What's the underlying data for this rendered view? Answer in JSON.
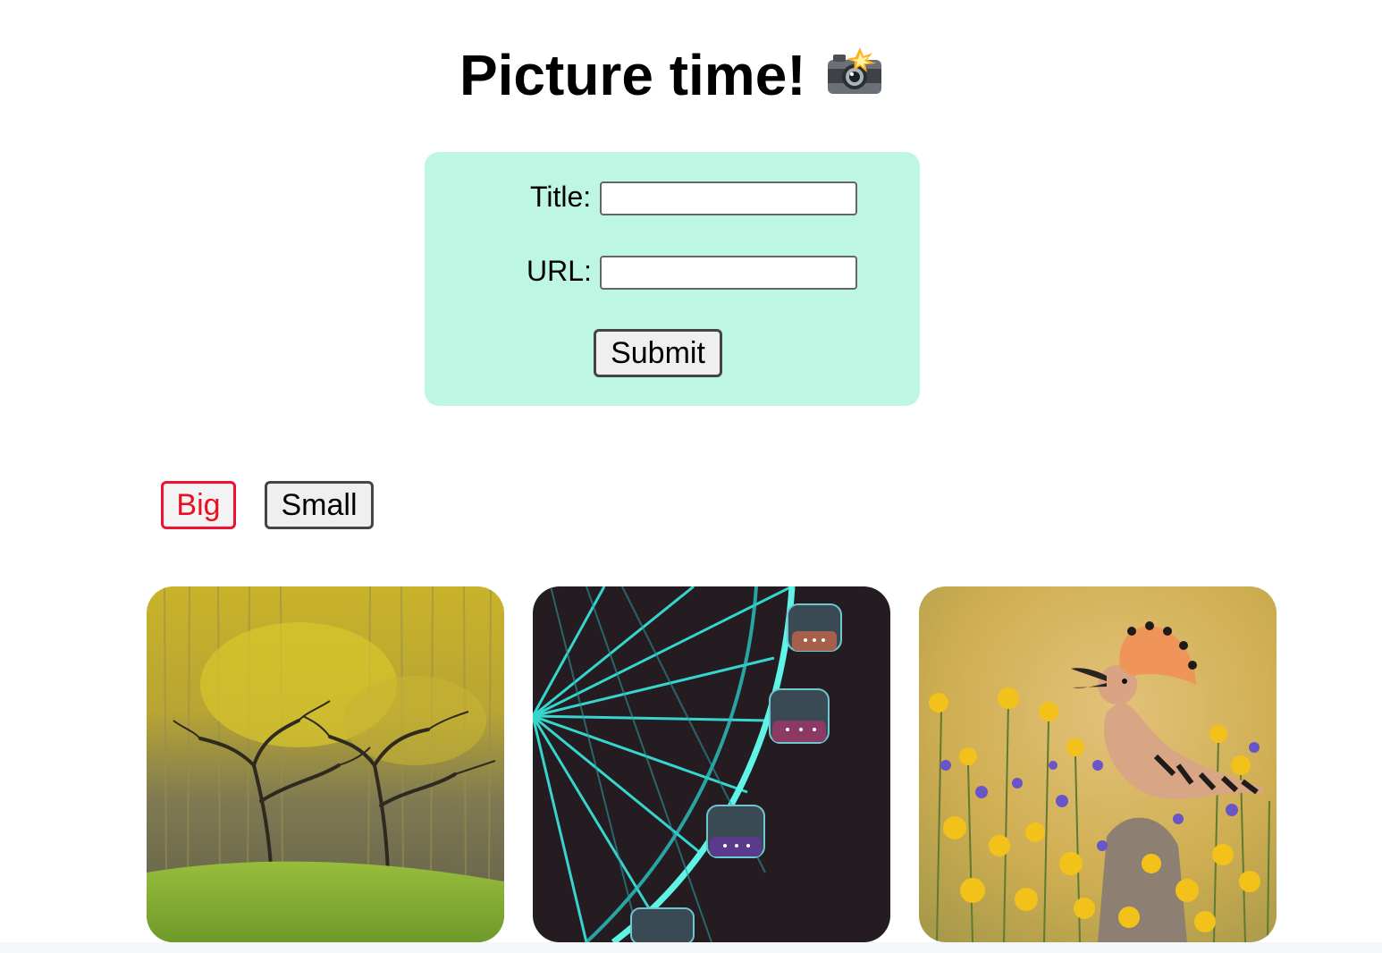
{
  "header": {
    "title": "Picture time!",
    "icon": "camera-flash-icon"
  },
  "form": {
    "title_label": "Title:",
    "title_value": "",
    "url_label": "URL:",
    "url_value": "",
    "submit_label": "Submit",
    "background_color": "#bdf7e3"
  },
  "size_toggle": {
    "big_label": "Big",
    "small_label": "Small",
    "active": "Big",
    "active_color": "#ee1133"
  },
  "gallery": [
    {
      "subject": "yellow autumn forest with bare trees"
    },
    {
      "subject": "neon ferris wheel at night"
    },
    {
      "subject": "hoopoe bird among wildflowers"
    }
  ]
}
